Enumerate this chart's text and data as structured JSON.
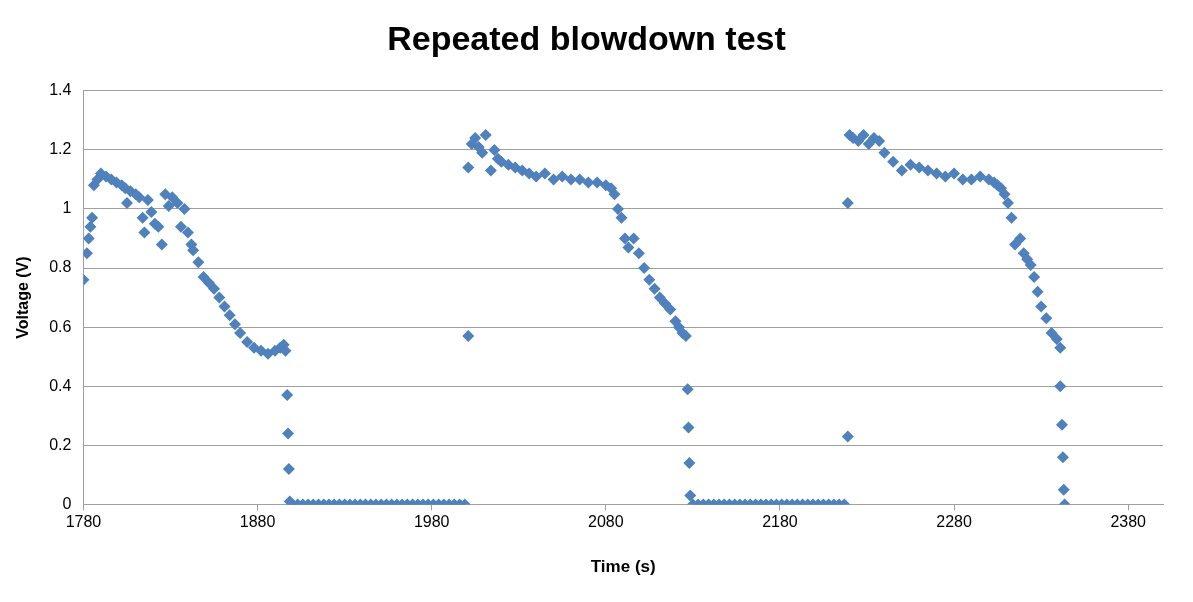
{
  "chart_data": {
    "type": "scatter",
    "title": "Repeated blowdown test",
    "xlabel": "Time (s)",
    "ylabel": "Voltage (V)",
    "xlim": [
      1780,
      2400
    ],
    "xticks": [
      1780,
      1880,
      1980,
      2080,
      2180,
      2280,
      2380
    ],
    "ylim": [
      0,
      1.4
    ],
    "yticks": [
      0,
      0.2,
      0.4,
      0.6,
      0.8,
      1,
      1.2,
      1.4
    ],
    "grid": "y",
    "legend": false,
    "marker": "diamond",
    "series": [
      {
        "color": "#4f81bd",
        "x": [
          1780,
          1782,
          1783,
          1784,
          1785,
          1786,
          1788,
          1790,
          1793,
          1796,
          1799,
          1802,
          1804,
          1805,
          1807,
          1810,
          1812,
          1814,
          1815,
          1817,
          1819,
          1821,
          1823,
          1825,
          1827,
          1829,
          1831,
          1834,
          1836,
          1838,
          1840,
          1842,
          1843,
          1846,
          1849,
          1852,
          1855,
          1858,
          1861,
          1864,
          1867,
          1870,
          1874,
          1878,
          1882,
          1886,
          1890,
          1893,
          1895,
          1896,
          1897,
          1897.5,
          1898,
          1898.5,
          1900,
          1903,
          1906,
          1909,
          1912,
          1915,
          1918,
          1921,
          1924,
          1927,
          1930,
          1933,
          1936,
          1939,
          1942,
          1945,
          1948,
          1951,
          1954,
          1957,
          1960,
          1963,
          1966,
          1969,
          1972,
          1975,
          1978,
          1981,
          1984,
          1987,
          1990,
          1993,
          1996,
          1999,
          2001,
          2001,
          2003,
          2005,
          2007,
          2009,
          2011,
          2014,
          2016,
          2018,
          2020,
          2024,
          2028,
          2032,
          2036,
          2040,
          2045,
          2050,
          2055,
          2060,
          2065,
          2070,
          2075,
          2080,
          2083,
          2085,
          2087,
          2089,
          2091,
          2093,
          2096,
          2099,
          2102,
          2105,
          2108,
          2111,
          2114,
          2117,
          2120,
          2122,
          2124,
          2126,
          2127,
          2127.5,
          2128,
          2128.5,
          2130,
          2133,
          2136,
          2139,
          2142,
          2145,
          2148,
          2151,
          2154,
          2157,
          2160,
          2163,
          2166,
          2169,
          2172,
          2175,
          2178,
          2181,
          2184,
          2187,
          2190,
          2193,
          2196,
          2199,
          2202,
          2205,
          2208,
          2211,
          2214,
          2217,
          2219,
          2219,
          2220,
          2222,
          2225,
          2228,
          2231,
          2234,
          2237,
          2240,
          2245,
          2250,
          2255,
          2260,
          2265,
          2270,
          2275,
          2280,
          2285,
          2290,
          2295,
          2300,
          2303,
          2305,
          2307,
          2309,
          2311,
          2313,
          2315,
          2318,
          2320,
          2322,
          2324,
          2326,
          2328,
          2330,
          2333,
          2336,
          2339,
          2341,
          2341,
          2342,
          2342.5,
          2343,
          2343.5
        ],
        "values": [
          0.76,
          0.85,
          0.9,
          0.94,
          0.97,
          1.08,
          1.1,
          1.12,
          1.11,
          1.1,
          1.09,
          1.08,
          1.07,
          1.02,
          1.06,
          1.05,
          1.04,
          0.97,
          0.92,
          1.03,
          0.99,
          0.95,
          0.94,
          0.88,
          1.05,
          1.01,
          1.04,
          1.02,
          0.94,
          1.0,
          0.92,
          0.88,
          0.86,
          0.82,
          0.77,
          0.75,
          0.73,
          0.7,
          0.67,
          0.64,
          0.61,
          0.58,
          0.55,
          0.53,
          0.52,
          0.51,
          0.52,
          0.53,
          0.54,
          0.52,
          0.37,
          0.24,
          0.12,
          0.01,
          0,
          0,
          0,
          0,
          0,
          0,
          0,
          0,
          0,
          0,
          0,
          0,
          0,
          0,
          0,
          0,
          0,
          0,
          0,
          0,
          0,
          0,
          0,
          0,
          0,
          0,
          0,
          0,
          0,
          0,
          0,
          0,
          0,
          0,
          0.57,
          1.14,
          1.22,
          1.24,
          1.21,
          1.19,
          1.25,
          1.13,
          1.2,
          1.17,
          1.16,
          1.15,
          1.14,
          1.13,
          1.12,
          1.11,
          1.12,
          1.1,
          1.11,
          1.1,
          1.1,
          1.09,
          1.09,
          1.08,
          1.07,
          1.05,
          1.0,
          0.97,
          0.9,
          0.87,
          0.9,
          0.85,
          0.8,
          0.76,
          0.73,
          0.7,
          0.68,
          0.66,
          0.62,
          0.6,
          0.58,
          0.57,
          0.39,
          0.26,
          0.14,
          0.03,
          0,
          0,
          0,
          0,
          0,
          0,
          0,
          0,
          0,
          0,
          0,
          0,
          0,
          0,
          0,
          0,
          0,
          0,
          0,
          0,
          0,
          0,
          0,
          0,
          0,
          0,
          0,
          0,
          0,
          0,
          1.02,
          0.23,
          1.25,
          1.24,
          1.23,
          1.25,
          1.22,
          1.24,
          1.23,
          1.19,
          1.16,
          1.13,
          1.15,
          1.14,
          1.13,
          1.12,
          1.11,
          1.12,
          1.1,
          1.1,
          1.11,
          1.1,
          1.09,
          1.08,
          1.07,
          1.05,
          1.02,
          0.97,
          0.88,
          0.9,
          0.85,
          0.83,
          0.81,
          0.77,
          0.72,
          0.67,
          0.63,
          0.58,
          0.56,
          0.53,
          0.4,
          0.27,
          0.16,
          0.05,
          0
        ]
      }
    ]
  }
}
